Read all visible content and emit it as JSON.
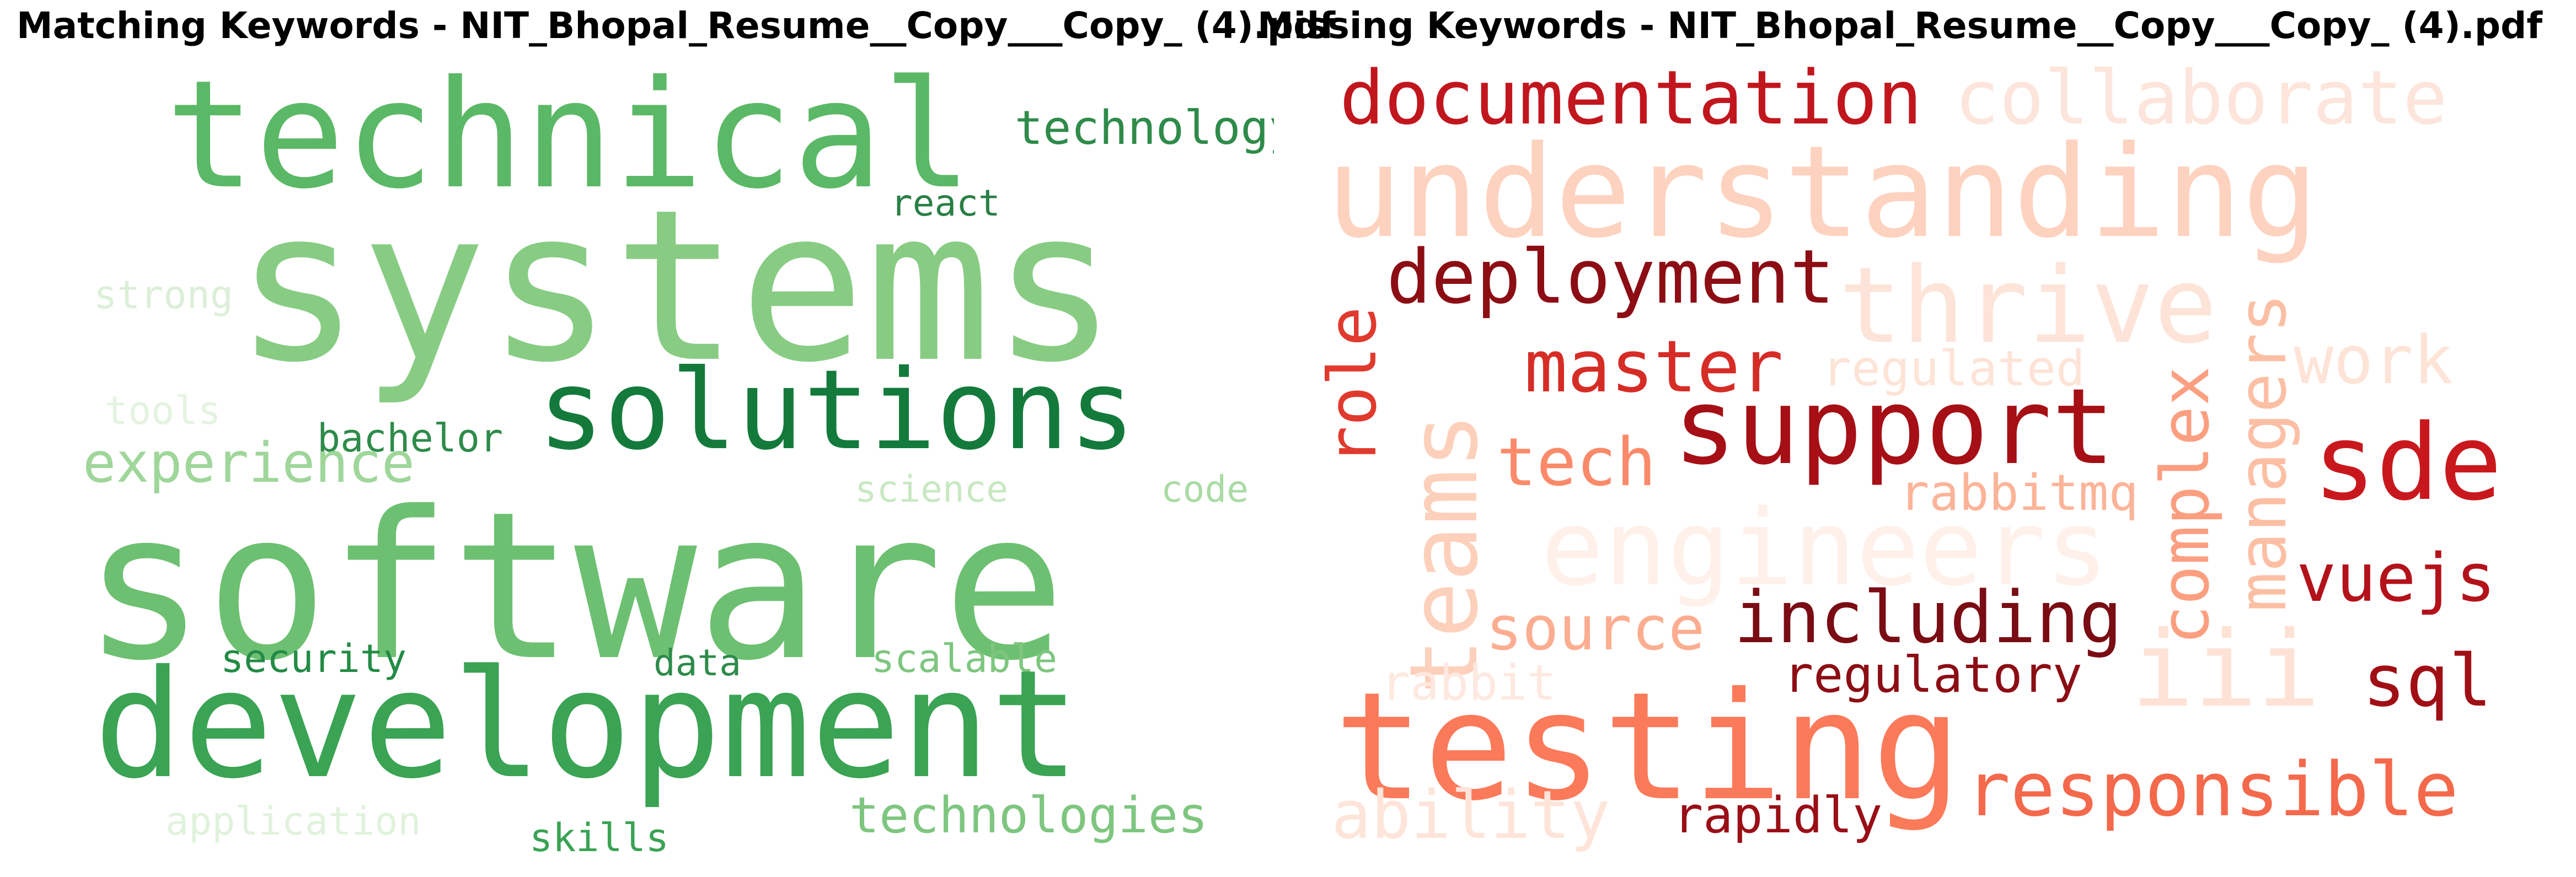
{
  "matching": {
    "title": "Matching Keywords - NIT_Bhopal_Resume__Copy___Copy_ (4).pdf",
    "words": [
      {
        "text": "technical",
        "color": "#5bb866"
      },
      {
        "text": "technology",
        "color": "#2e8b4a"
      },
      {
        "text": "systems",
        "color": "#88cc84"
      },
      {
        "text": "react",
        "color": "#2a7f45"
      },
      {
        "text": "strong",
        "color": "#dcefd8"
      },
      {
        "text": "solutions",
        "color": "#137a3b"
      },
      {
        "text": "tools",
        "color": "#e4f3e1"
      },
      {
        "text": "bachelor",
        "color": "#2e8b4a"
      },
      {
        "text": "experience",
        "color": "#9fd69a"
      },
      {
        "text": "science",
        "color": "#c8e8c2"
      },
      {
        "text": "code",
        "color": "#a9dba3"
      },
      {
        "text": "software",
        "color": "#6dc072"
      },
      {
        "text": "security",
        "color": "#238b45"
      },
      {
        "text": "data",
        "color": "#2e8b4a"
      },
      {
        "text": "scalable",
        "color": "#7ec67f"
      },
      {
        "text": "development",
        "color": "#3aa354"
      },
      {
        "text": "application",
        "color": "#e0f2dc"
      },
      {
        "text": "skills",
        "color": "#3aa354"
      },
      {
        "text": "technologies",
        "color": "#7ec67f"
      }
    ]
  },
  "missing": {
    "title": "Missing Keywords - NIT_Bhopal_Resume__Copy___Copy_ (4).pdf",
    "words": [
      {
        "text": "documentation",
        "color": "#c1161d"
      },
      {
        "text": "collaborate",
        "color": "#fde5dc"
      },
      {
        "text": "understanding",
        "color": "#fdd2bf"
      },
      {
        "text": "thrive",
        "color": "#fde3d8"
      },
      {
        "text": "deployment",
        "color": "#8c0d14"
      },
      {
        "text": "role",
        "color": "#e03a2e"
      },
      {
        "text": "teams",
        "color": "#fdd0bb"
      },
      {
        "text": "master",
        "color": "#d62c26"
      },
      {
        "text": "regulated",
        "color": "#fee3d7"
      },
      {
        "text": "work",
        "color": "#fee3d7"
      },
      {
        "text": "managers",
        "color": "#fcbfa4"
      },
      {
        "text": "complex",
        "color": "#fc9f80"
      },
      {
        "text": "support",
        "color": "#a50f15"
      },
      {
        "text": "sde",
        "color": "#c9181d"
      },
      {
        "text": "tech",
        "color": "#fb8a6a"
      },
      {
        "text": "rabbitmq",
        "color": "#fcb498"
      },
      {
        "text": "engineers",
        "color": "#fff0ea"
      },
      {
        "text": "vuejs",
        "color": "#b3121a"
      },
      {
        "text": "source",
        "color": "#fcad90"
      },
      {
        "text": "including",
        "color": "#7a0c13"
      },
      {
        "text": "rabbit",
        "color": "#fee8df"
      },
      {
        "text": "regulatory",
        "color": "#8c0d14"
      },
      {
        "text": "iii",
        "color": "#fee2d6"
      },
      {
        "text": "sql",
        "color": "#a00f15"
      },
      {
        "text": "testing",
        "color": "#fb7a5a"
      },
      {
        "text": "responsible",
        "color": "#f4694b"
      },
      {
        "text": "ability",
        "color": "#fee4d9"
      },
      {
        "text": "rapidly",
        "color": "#9a0e16"
      }
    ]
  }
}
